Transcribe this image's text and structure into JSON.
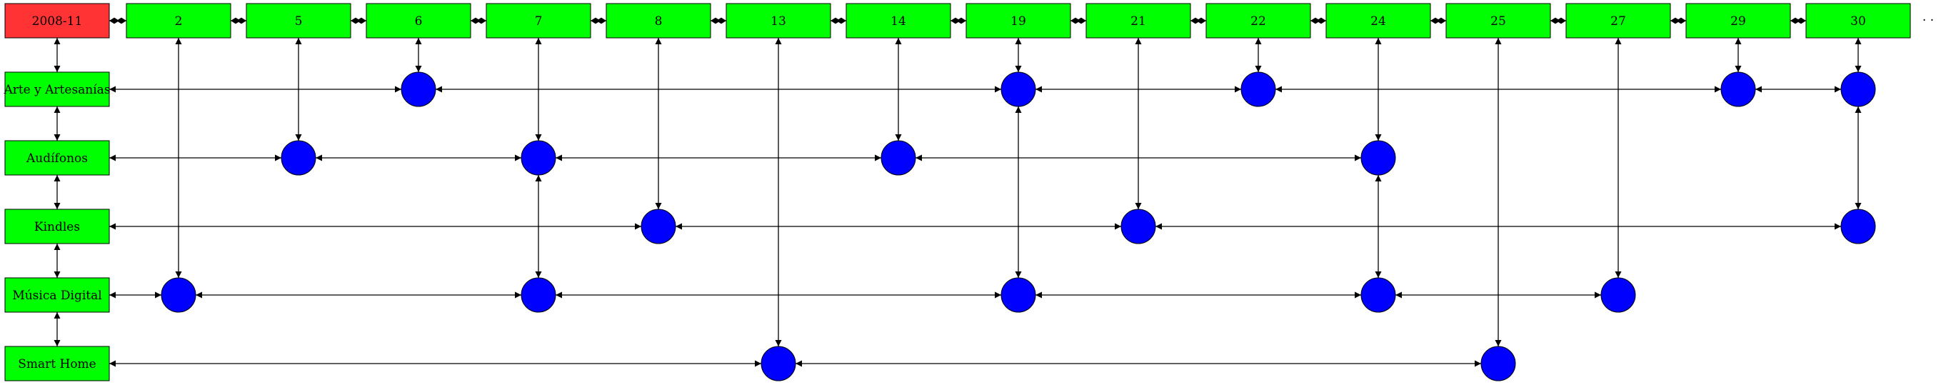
{
  "root": {
    "label": "2008-11",
    "color": "#ff3333"
  },
  "days": [
    "2",
    "5",
    "6",
    "7",
    "8",
    "13",
    "14",
    "19",
    "21",
    "22",
    "24",
    "25",
    "27",
    "29",
    "30"
  ],
  "categories": [
    "Arte y Artesanías",
    "Audífonos",
    "Kindles",
    "Música Digital",
    "Smart Home"
  ],
  "trailing_text": "· ·",
  "colors": {
    "node": "#00ff00",
    "event": "#0000ff",
    "edge": "#000000",
    "root": "#ff3333"
  },
  "events": {
    "Arte y Artesanías": [
      "6",
      "19",
      "22",
      "29",
      "30"
    ],
    "Audífonos": [
      "5",
      "7",
      "14",
      "24"
    ],
    "Kindles": [
      "8",
      "21",
      "30"
    ],
    "Música Digital": [
      "2",
      "7",
      "19",
      "24",
      "27"
    ],
    "Smart Home": [
      "13",
      "25"
    ]
  }
}
